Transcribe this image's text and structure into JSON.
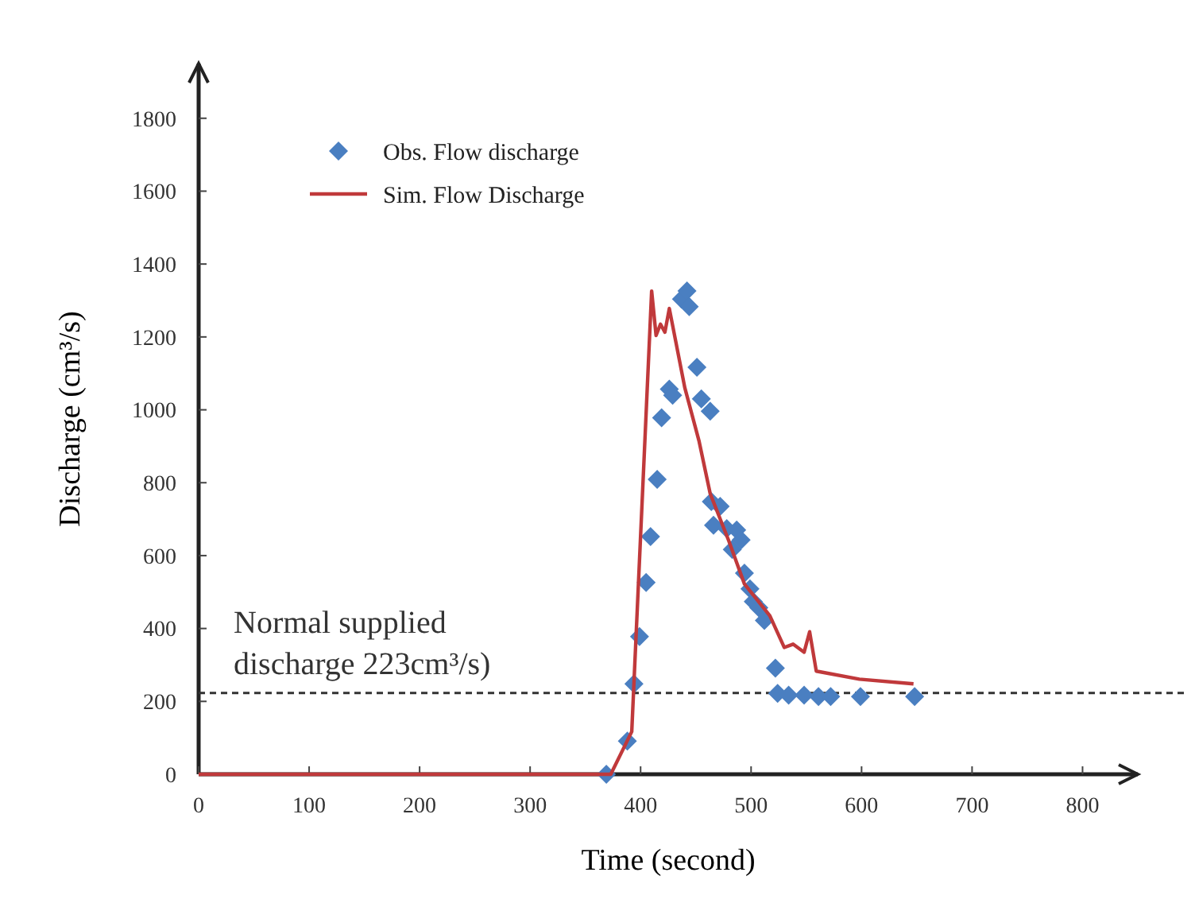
{
  "chart_data": {
    "type": "scatter",
    "xlabel": "Time (second)",
    "ylabel": "Discharge (cm³/s)",
    "xlim": [
      0,
      850
    ],
    "xticks": [
      0,
      100,
      200,
      300,
      400,
      500,
      600,
      700,
      800
    ],
    "ylim": [
      0,
      1950
    ],
    "yticks": [
      0,
      200,
      400,
      600,
      800,
      1000,
      1200,
      1400,
      1600,
      1800
    ],
    "grid": false,
    "legend": "top left",
    "series": [
      {
        "name": "Obs. Flow discharge",
        "marker": "diamond",
        "color": "#4a7fc1",
        "x": [
          369,
          388,
          394,
          399,
          405,
          409,
          415,
          419,
          426,
          429,
          437,
          442,
          444,
          451,
          455,
          463,
          464,
          472,
          466,
          478,
          487,
          483,
          491,
          494,
          499,
          502,
          507,
          512,
          522,
          524,
          534,
          548,
          561,
          572,
          599,
          648
        ],
        "values": [
          0,
          91,
          248,
          378,
          526,
          652,
          809,
          978,
          1057,
          1040,
          1304,
          1326,
          1283,
          1117,
          1030,
          996,
          748,
          735,
          683,
          674,
          670,
          617,
          643,
          552,
          509,
          474,
          457,
          422,
          291,
          222,
          217,
          217,
          213,
          213,
          213,
          213
        ]
      },
      {
        "name": "Sim. Flow Discharge",
        "type": "line",
        "marker": "none",
        "line_style": "solid",
        "color": "#c0393b",
        "x": [
          0,
          373,
          392,
          410,
          414,
          418,
          422,
          426,
          440,
          453,
          463,
          480,
          494,
          517,
          530,
          538,
          548,
          553,
          559,
          598,
          647
        ],
        "values": [
          0,
          0,
          117,
          1326,
          1204,
          1235,
          1213,
          1278,
          1061,
          913,
          770,
          639,
          522,
          435,
          348,
          357,
          335,
          391,
          283,
          261,
          248
        ]
      }
    ],
    "ref_lines": [
      {
        "axis": "y",
        "value": 223,
        "label": "Normal supplied discharge 223cm³/s)",
        "line_style": "dashed",
        "color": "#333333"
      }
    ]
  }
}
